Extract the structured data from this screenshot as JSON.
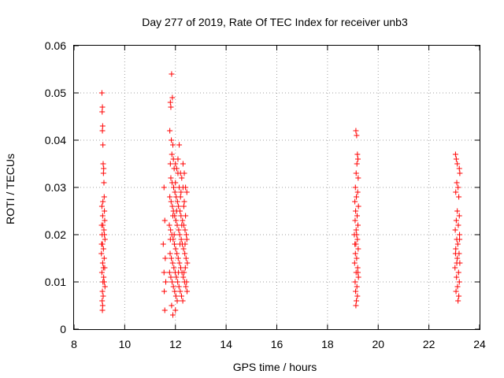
{
  "chart_data": {
    "type": "scatter",
    "title": "Day 277 of 2019, Rate Of TEC Index for receiver unb3",
    "xlabel": "GPS time / hours",
    "ylabel": "ROTI / TECUs",
    "xlim": [
      8,
      24
    ],
    "ylim": [
      0,
      0.06
    ],
    "xticks": [
      "8",
      "10",
      "12",
      "14",
      "16",
      "18",
      "20",
      "22",
      "24"
    ],
    "yticks": [
      "0",
      "0.01",
      "0.02",
      "0.03",
      "0.04",
      "0.05",
      "0.06"
    ],
    "grid": true,
    "marker": "+",
    "marker_color": "#ff0000",
    "series": [
      {
        "name": "ROTI",
        "points": [
          [
            9.1,
            0.05
          ],
          [
            9.12,
            0.047
          ],
          [
            9.11,
            0.046
          ],
          [
            9.13,
            0.043
          ],
          [
            9.12,
            0.042
          ],
          [
            9.14,
            0.039
          ],
          [
            9.15,
            0.035
          ],
          [
            9.17,
            0.034
          ],
          [
            9.16,
            0.033
          ],
          [
            9.18,
            0.031
          ],
          [
            9.19,
            0.028
          ],
          [
            9.14,
            0.027
          ],
          [
            9.1,
            0.026
          ],
          [
            9.2,
            0.025
          ],
          [
            9.13,
            0.024
          ],
          [
            9.21,
            0.023
          ],
          [
            9.09,
            0.022
          ],
          [
            9.18,
            0.021
          ],
          [
            9.11,
            0.02
          ],
          [
            9.22,
            0.019
          ],
          [
            9.12,
            0.018
          ],
          [
            9.16,
            0.017
          ],
          [
            9.08,
            0.016
          ],
          [
            9.19,
            0.015
          ],
          [
            9.13,
            0.014
          ],
          [
            9.21,
            0.013
          ],
          [
            9.1,
            0.012
          ],
          [
            9.17,
            0.011
          ],
          [
            9.14,
            0.01
          ],
          [
            9.22,
            0.009
          ],
          [
            9.12,
            0.008
          ],
          [
            9.15,
            0.007
          ],
          [
            9.11,
            0.006
          ],
          [
            9.13,
            0.005
          ],
          [
            9.12,
            0.004
          ],
          [
            9.19,
            0.01
          ],
          [
            9.16,
            0.013
          ],
          [
            9.09,
            0.018
          ],
          [
            9.2,
            0.02
          ],
          [
            9.14,
            0.022
          ],
          [
            11.55,
            0.03
          ],
          [
            11.58,
            0.023
          ],
          [
            11.52,
            0.018
          ],
          [
            11.6,
            0.015
          ],
          [
            11.55,
            0.012
          ],
          [
            11.62,
            0.01
          ],
          [
            11.56,
            0.008
          ],
          [
            11.58,
            0.004
          ],
          [
            11.85,
            0.054
          ],
          [
            11.88,
            0.049
          ],
          [
            11.8,
            0.048
          ],
          [
            11.82,
            0.047
          ],
          [
            11.78,
            0.042
          ],
          [
            11.84,
            0.04
          ],
          [
            11.9,
            0.039
          ],
          [
            11.86,
            0.037
          ],
          [
            11.92,
            0.036
          ],
          [
            11.8,
            0.035
          ],
          [
            11.95,
            0.034
          ],
          [
            12.0,
            0.035
          ],
          [
            12.05,
            0.034
          ],
          [
            12.1,
            0.036
          ],
          [
            12.15,
            0.039
          ],
          [
            12.2,
            0.033
          ],
          [
            12.25,
            0.032
          ],
          [
            12.3,
            0.035
          ],
          [
            12.35,
            0.033
          ],
          [
            12.4,
            0.03
          ],
          [
            12.45,
            0.029
          ],
          [
            11.82,
            0.032
          ],
          [
            11.87,
            0.031
          ],
          [
            11.93,
            0.03
          ],
          [
            11.98,
            0.029
          ],
          [
            12.03,
            0.028
          ],
          [
            12.08,
            0.027
          ],
          [
            12.12,
            0.026
          ],
          [
            12.18,
            0.025
          ],
          [
            12.22,
            0.024
          ],
          [
            12.28,
            0.023
          ],
          [
            12.33,
            0.022
          ],
          [
            12.38,
            0.021
          ],
          [
            12.43,
            0.02
          ],
          [
            11.78,
            0.028
          ],
          [
            11.83,
            0.027
          ],
          [
            11.88,
            0.026
          ],
          [
            11.92,
            0.025
          ],
          [
            11.97,
            0.024
          ],
          [
            12.02,
            0.023
          ],
          [
            12.07,
            0.022
          ],
          [
            12.13,
            0.021
          ],
          [
            12.17,
            0.02
          ],
          [
            12.23,
            0.019
          ],
          [
            12.27,
            0.018
          ],
          [
            12.32,
            0.017
          ],
          [
            12.37,
            0.016
          ],
          [
            12.42,
            0.015
          ],
          [
            12.47,
            0.014
          ],
          [
            11.76,
            0.022
          ],
          [
            11.81,
            0.021
          ],
          [
            11.86,
            0.02
          ],
          [
            11.91,
            0.019
          ],
          [
            11.96,
            0.018
          ],
          [
            12.01,
            0.017
          ],
          [
            12.06,
            0.016
          ],
          [
            12.11,
            0.015
          ],
          [
            12.16,
            0.014
          ],
          [
            12.21,
            0.013
          ],
          [
            12.26,
            0.012
          ],
          [
            12.31,
            0.011
          ],
          [
            12.36,
            0.01
          ],
          [
            12.41,
            0.009
          ],
          [
            12.46,
            0.008
          ],
          [
            11.79,
            0.016
          ],
          [
            11.84,
            0.015
          ],
          [
            11.89,
            0.014
          ],
          [
            11.94,
            0.013
          ],
          [
            11.99,
            0.012
          ],
          [
            12.04,
            0.011
          ],
          [
            12.09,
            0.01
          ],
          [
            12.14,
            0.009
          ],
          [
            12.19,
            0.008
          ],
          [
            12.24,
            0.007
          ],
          [
            12.29,
            0.006
          ],
          [
            12.34,
            0.012
          ],
          [
            12.39,
            0.013
          ],
          [
            12.44,
            0.01
          ],
          [
            11.77,
            0.012
          ],
          [
            11.82,
            0.011
          ],
          [
            11.87,
            0.01
          ],
          [
            11.92,
            0.009
          ],
          [
            11.97,
            0.008
          ],
          [
            12.02,
            0.007
          ],
          [
            12.07,
            0.006
          ],
          [
            11.85,
            0.005
          ],
          [
            11.9,
            0.003
          ],
          [
            12.0,
            0.004
          ],
          [
            12.12,
            0.012
          ],
          [
            12.18,
            0.018
          ],
          [
            12.25,
            0.022
          ],
          [
            12.33,
            0.026
          ],
          [
            12.4,
            0.024
          ],
          [
            12.45,
            0.019
          ],
          [
            11.95,
            0.02
          ],
          [
            12.05,
            0.025
          ],
          [
            12.15,
            0.03
          ],
          [
            12.2,
            0.028
          ],
          [
            12.3,
            0.03
          ],
          [
            12.35,
            0.027
          ],
          [
            11.8,
            0.019
          ],
          [
            11.9,
            0.024
          ],
          [
            12.0,
            0.031
          ],
          [
            12.1,
            0.033
          ],
          [
            12.22,
            0.029
          ],
          [
            12.38,
            0.018
          ],
          [
            19.12,
            0.042
          ],
          [
            19.15,
            0.041
          ],
          [
            19.18,
            0.037
          ],
          [
            19.2,
            0.036
          ],
          [
            19.16,
            0.035
          ],
          [
            19.13,
            0.033
          ],
          [
            19.21,
            0.032
          ],
          [
            19.1,
            0.03
          ],
          [
            19.19,
            0.029
          ],
          [
            19.14,
            0.028
          ],
          [
            19.08,
            0.027
          ],
          [
            19.22,
            0.026
          ],
          [
            19.11,
            0.025
          ],
          [
            19.17,
            0.024
          ],
          [
            19.09,
            0.023
          ],
          [
            19.2,
            0.022
          ],
          [
            19.13,
            0.021
          ],
          [
            19.06,
            0.02
          ],
          [
            19.18,
            0.019
          ],
          [
            19.12,
            0.018
          ],
          [
            19.21,
            0.017
          ],
          [
            19.1,
            0.016
          ],
          [
            19.15,
            0.015
          ],
          [
            19.07,
            0.014
          ],
          [
            19.19,
            0.013
          ],
          [
            19.13,
            0.012
          ],
          [
            19.22,
            0.011
          ],
          [
            19.09,
            0.01
          ],
          [
            19.16,
            0.009
          ],
          [
            19.11,
            0.008
          ],
          [
            19.18,
            0.007
          ],
          [
            19.14,
            0.006
          ],
          [
            19.12,
            0.005
          ],
          [
            19.2,
            0.012
          ],
          [
            19.08,
            0.018
          ],
          [
            19.15,
            0.02
          ],
          [
            23.05,
            0.037
          ],
          [
            23.08,
            0.036
          ],
          [
            23.12,
            0.035
          ],
          [
            23.2,
            0.034
          ],
          [
            23.22,
            0.033
          ],
          [
            23.1,
            0.031
          ],
          [
            23.15,
            0.03
          ],
          [
            23.06,
            0.029
          ],
          [
            23.18,
            0.028
          ],
          [
            23.12,
            0.025
          ],
          [
            23.2,
            0.024
          ],
          [
            23.08,
            0.023
          ],
          [
            23.16,
            0.022
          ],
          [
            23.04,
            0.021
          ],
          [
            23.21,
            0.02
          ],
          [
            23.1,
            0.019
          ],
          [
            23.14,
            0.018
          ],
          [
            23.06,
            0.017
          ],
          [
            23.19,
            0.016
          ],
          [
            23.12,
            0.015
          ],
          [
            23.22,
            0.014
          ],
          [
            23.03,
            0.013
          ],
          [
            23.17,
            0.012
          ],
          [
            23.09,
            0.011
          ],
          [
            23.2,
            0.01
          ],
          [
            23.13,
            0.009
          ],
          [
            23.07,
            0.008
          ],
          [
            23.18,
            0.007
          ],
          [
            23.15,
            0.006
          ],
          [
            23.1,
            0.014
          ],
          [
            23.21,
            0.019
          ],
          [
            23.05,
            0.016
          ]
        ]
      }
    ]
  }
}
